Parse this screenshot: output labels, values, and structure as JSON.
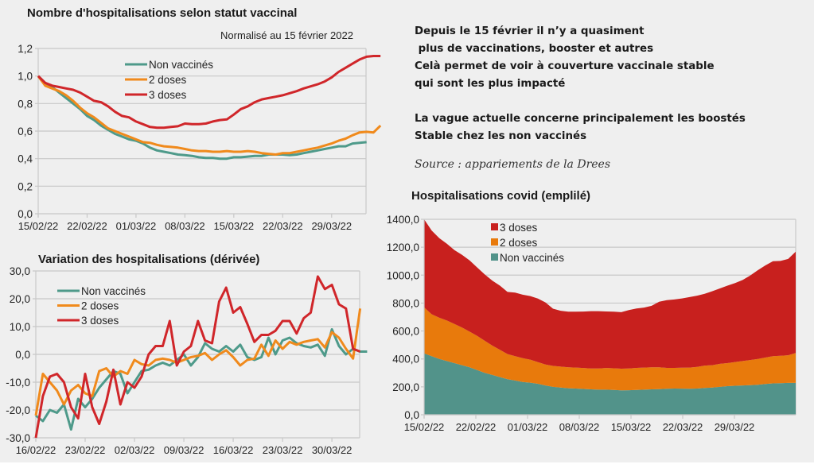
{
  "notes": {
    "lines": [
      "Depuis le 15 février il n’y a quasiment",
      " plus de vaccinations, booster et autres",
      "Celà permet de voir à couverture vaccinale stable",
      "qui sont les plus impacté",
      "",
      "La vague actuelle concerne principalement les boostés",
      "Stable chez les non vaccinés"
    ],
    "source": "Source : appariements de la Drees"
  },
  "colors": {
    "non_vaccines": "#4e9a8a",
    "doses2": "#f08a1c",
    "doses3": "#d0262a",
    "area_non_vaccines": "#52938a",
    "area_doses2": "#e87a0c",
    "area_doses3": "#c8201e"
  },
  "chart_data": [
    {
      "id": "normalized",
      "type": "line",
      "title": "Nombre d'hospitalisations selon statut vaccinal",
      "subtitle": "Normalisé au 15 février 2022",
      "xlabel": "",
      "ylabel": "",
      "x_start": "15/02/22",
      "x_ticks": [
        "15/02/22",
        "22/02/22",
        "01/03/22",
        "08/03/22",
        "15/03/22",
        "22/03/22",
        "29/03/22"
      ],
      "y_ticks": [
        "0,0",
        "0,2",
        "0,4",
        "0,6",
        "0,8",
        "1,0",
        "1,2"
      ],
      "ylim": [
        0,
        1.2
      ],
      "grid": true,
      "legend_position": "top-center",
      "series": [
        {
          "name": "Non vaccinés",
          "color_key": "non_vaccines",
          "values": [
            1.0,
            0.95,
            0.92,
            0.88,
            0.84,
            0.8,
            0.76,
            0.71,
            0.68,
            0.64,
            0.61,
            0.58,
            0.56,
            0.54,
            0.53,
            0.51,
            0.48,
            0.46,
            0.45,
            0.44,
            0.43,
            0.425,
            0.42,
            0.41,
            0.405,
            0.405,
            0.4,
            0.4,
            0.41,
            0.41,
            0.415,
            0.42,
            0.42,
            0.43,
            0.43,
            0.43,
            0.425,
            0.43,
            0.44,
            0.45,
            0.46,
            0.47,
            0.48,
            0.49,
            0.49,
            0.51,
            0.515,
            0.52
          ]
        },
        {
          "name": "2 doses",
          "color_key": "doses2",
          "values": [
            1.0,
            0.93,
            0.91,
            0.89,
            0.86,
            0.82,
            0.77,
            0.73,
            0.7,
            0.66,
            0.62,
            0.6,
            0.58,
            0.56,
            0.54,
            0.52,
            0.515,
            0.5,
            0.49,
            0.485,
            0.48,
            0.47,
            0.46,
            0.455,
            0.455,
            0.45,
            0.45,
            0.455,
            0.45,
            0.45,
            0.455,
            0.45,
            0.44,
            0.435,
            0.43,
            0.44,
            0.44,
            0.45,
            0.46,
            0.47,
            0.48,
            0.495,
            0.51,
            0.53,
            0.545,
            0.57,
            0.59,
            0.595,
            0.59,
            0.64
          ]
        },
        {
          "name": "3 doses",
          "color_key": "doses3",
          "values": [
            1.0,
            0.95,
            0.93,
            0.92,
            0.91,
            0.9,
            0.88,
            0.85,
            0.82,
            0.81,
            0.78,
            0.74,
            0.71,
            0.7,
            0.67,
            0.65,
            0.63,
            0.625,
            0.625,
            0.63,
            0.635,
            0.655,
            0.65,
            0.65,
            0.655,
            0.67,
            0.68,
            0.685,
            0.72,
            0.76,
            0.78,
            0.81,
            0.83,
            0.84,
            0.85,
            0.86,
            0.875,
            0.89,
            0.91,
            0.925,
            0.94,
            0.96,
            0.99,
            1.03,
            1.06,
            1.09,
            1.12,
            1.14,
            1.145,
            1.145
          ]
        }
      ]
    },
    {
      "id": "derivative",
      "type": "line",
      "title": "Variation des hospitalisations (dérivée)",
      "xlabel": "",
      "ylabel": "",
      "x_start": "16/02/22",
      "x_ticks": [
        "16/02/22",
        "23/02/22",
        "02/03/22",
        "09/03/22",
        "16/03/22",
        "23/03/22",
        "30/03/22"
      ],
      "y_ticks": [
        "-30,0",
        "-20,0",
        "-10,0",
        "0,0",
        "10,0",
        "20,0",
        "30,0"
      ],
      "ylim": [
        -30,
        30
      ],
      "grid": true,
      "legend_position": "top-left",
      "series": [
        {
          "name": "Non vaccinés",
          "color_key": "non_vaccines",
          "values": [
            -22,
            -24,
            -20,
            -21,
            -18,
            -27,
            -16,
            -19,
            -16,
            -12,
            -9,
            -6,
            -7,
            -14,
            -10,
            -6,
            -5.5,
            -4,
            -3,
            -4,
            -2,
            0,
            -4,
            -1,
            4,
            2,
            1,
            3,
            1,
            3.5,
            -1,
            -2,
            -1,
            6,
            0,
            5,
            6,
            4,
            3,
            2.5,
            3.5,
            -0.5,
            9,
            3,
            0,
            2,
            1,
            1
          ]
        },
        {
          "name": "2 doses",
          "color_key": "doses2",
          "values": [
            -22,
            -7,
            -10,
            -13,
            -18,
            -13,
            -11,
            -14,
            -15,
            -6,
            -5,
            -8,
            -6,
            -7,
            -2,
            -3.5,
            -4,
            -2,
            -1.5,
            -2,
            -3,
            -2,
            -1,
            -0.5,
            0.5,
            -2,
            0,
            1.5,
            -1,
            -4,
            -2,
            -1.5,
            3.5,
            -0.5,
            5,
            2,
            4.5,
            3.5,
            4.5,
            5,
            5.5,
            2.5,
            8,
            6,
            2,
            -1.5,
            16.5
          ]
        },
        {
          "name": "3 doses",
          "color_key": "doses3",
          "values": [
            -30,
            -15,
            -8,
            -7,
            -10,
            -19,
            -23,
            -7,
            -19,
            -25,
            -17,
            -5.5,
            -18,
            -10,
            -12,
            -8,
            0,
            3,
            3,
            12,
            -4,
            1,
            3,
            12,
            5,
            4,
            19,
            24,
            15,
            17,
            11,
            4.5,
            7,
            7,
            8.5,
            12,
            12,
            7.5,
            13,
            15,
            28,
            23.5,
            25,
            18,
            16.5,
            2,
            1
          ]
        }
      ]
    },
    {
      "id": "stacked",
      "type": "area",
      "stacked": true,
      "title": "Hospitalisations covid (emplilé)",
      "xlabel": "",
      "ylabel": "",
      "x_start": "15/02/22",
      "x_ticks": [
        "15/02/22",
        "22/02/22",
        "01/03/22",
        "08/03/22",
        "15/03/22",
        "22/03/22",
        "29/03/22"
      ],
      "y_ticks": [
        "0,0",
        "200,0",
        "400,0",
        "600,0",
        "800,0",
        "1000,0",
        "1200,0",
        "1400,0"
      ],
      "ylim": [
        0,
        1400
      ],
      "grid": true,
      "legend_position": "top-center",
      "series": [
        {
          "name": "Non vaccinés",
          "color_key": "area_non_vaccines",
          "values": [
            440,
            420,
            400,
            385,
            370,
            355,
            340,
            320,
            300,
            285,
            270,
            255,
            245,
            235,
            230,
            222,
            210,
            200,
            195,
            190,
            188,
            185,
            182,
            180,
            180,
            178,
            175,
            176,
            178,
            180,
            182,
            184,
            186,
            188,
            187,
            186,
            188,
            192,
            195,
            200,
            205,
            208,
            210,
            212,
            215,
            220,
            225,
            226,
            228,
            228
          ]
        },
        {
          "name": "2 doses",
          "color_key": "area_doses2",
          "values": [
            330,
            300,
            295,
            290,
            280,
            270,
            255,
            245,
            230,
            210,
            195,
            180,
            175,
            170,
            165,
            155,
            150,
            150,
            150,
            150,
            150,
            150,
            150,
            152,
            155,
            155,
            155,
            156,
            158,
            158,
            158,
            156,
            150,
            148,
            150,
            152,
            155,
            160,
            160,
            165,
            165,
            170,
            175,
            180,
            185,
            190,
            195,
            196,
            198,
            215
          ]
        },
        {
          "name": "3 doses",
          "color_key": "area_doses3",
          "values": [
            630,
            600,
            570,
            550,
            530,
            520,
            510,
            490,
            475,
            465,
            460,
            445,
            455,
            455,
            455,
            455,
            445,
            410,
            400,
            398,
            400,
            404,
            410,
            410,
            405,
            405,
            405,
            418,
            425,
            430,
            440,
            470,
            485,
            490,
            496,
            505,
            510,
            515,
            530,
            540,
            555,
            565,
            580,
            605,
            635,
            660,
            680,
            680,
            690,
            725
          ]
        }
      ]
    }
  ]
}
